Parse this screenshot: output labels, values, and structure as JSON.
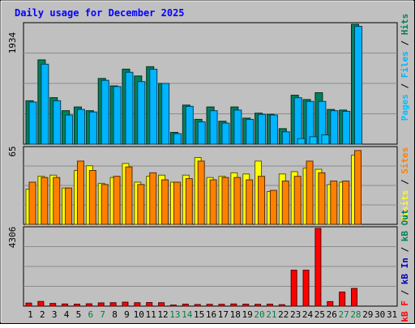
{
  "title": "Daily usage for December 2025",
  "colors": {
    "background": "#c0c0c0",
    "plot_bg": "#c0c0c0",
    "title": "#0000ff",
    "grid": "#8c8c8c",
    "hits": "#00805c",
    "files": "#00b4ff",
    "pages": "#00c0ff",
    "visits": "#ffff00",
    "sites": "#ff8000",
    "kb_in": "#0000c0",
    "kb_out": "#00805c",
    "kb_f": "#ff0000",
    "weekend": "#008040",
    "weekday": "#000000"
  },
  "panels": {
    "top": {
      "max_label": "1934",
      "legend": [
        "Pages",
        "/",
        "Files",
        "/",
        "Hits"
      ]
    },
    "middle": {
      "max_label": "65",
      "legend": [
        "Visits",
        "/",
        "Sites"
      ]
    },
    "bottom": {
      "max_label": "4306",
      "legend": [
        "kB F",
        "/",
        "kB In",
        "/",
        "kB Out"
      ]
    }
  },
  "chart_data": [
    {
      "type": "bar",
      "panel": "top",
      "ylim": [
        0,
        1934
      ],
      "ylabel_max": "1934",
      "x": [
        1,
        2,
        3,
        4,
        5,
        6,
        7,
        8,
        9,
        10,
        11,
        12,
        13,
        14,
        15,
        16,
        17,
        18,
        19,
        20,
        21,
        22,
        23,
        24,
        25,
        26,
        27,
        28,
        29,
        30,
        31
      ],
      "series": [
        {
          "name": "Hits",
          "values": [
            700,
            1360,
            750,
            540,
            600,
            540,
            1060,
            940,
            1210,
            1100,
            1250,
            980,
            190,
            630,
            400,
            600,
            370,
            600,
            420,
            500,
            480,
            250,
            790,
            720,
            830,
            560,
            550,
            1934,
            0,
            0,
            0
          ]
        },
        {
          "name": "Files",
          "values": [
            680,
            1290,
            700,
            470,
            560,
            520,
            1030,
            930,
            1160,
            1010,
            1210,
            980,
            170,
            610,
            360,
            540,
            340,
            550,
            400,
            480,
            470,
            200,
            750,
            690,
            690,
            540,
            530,
            1900,
            0,
            0,
            0
          ]
        },
        {
          "name": "Pages",
          "values": [
            0,
            0,
            0,
            0,
            0,
            0,
            0,
            0,
            0,
            0,
            0,
            0,
            0,
            0,
            0,
            0,
            0,
            0,
            0,
            0,
            0,
            0,
            90,
            120,
            150,
            0,
            0,
            0,
            0,
            0,
            0
          ]
        }
      ]
    },
    {
      "type": "bar",
      "panel": "middle",
      "ylim": [
        0,
        65
      ],
      "ylabel_max": "65",
      "x": [
        1,
        2,
        3,
        4,
        5,
        6,
        7,
        8,
        9,
        10,
        11,
        12,
        13,
        14,
        15,
        16,
        17,
        18,
        19,
        20,
        21,
        22,
        23,
        24,
        25,
        26,
        27,
        28,
        29,
        30,
        31
      ],
      "series": [
        {
          "name": "Visits",
          "values": [
            30,
            41,
            42,
            31,
            46,
            50,
            35,
            40,
            52,
            36,
            41,
            42,
            36,
            42,
            57,
            40,
            41,
            44,
            43,
            54,
            28,
            43,
            45,
            48,
            47,
            34,
            36,
            59,
            0,
            0,
            0
          ]
        },
        {
          "name": "Sites",
          "values": [
            36,
            40,
            40,
            31,
            54,
            46,
            34,
            41,
            49,
            34,
            44,
            38,
            36,
            39,
            54,
            38,
            40,
            40,
            38,
            41,
            29,
            37,
            41,
            54,
            44,
            37,
            37,
            63,
            0,
            0,
            0
          ]
        }
      ]
    },
    {
      "type": "bar",
      "panel": "bottom",
      "ylim": [
        0,
        4306
      ],
      "ylabel_max": "4306",
      "x": [
        1,
        2,
        3,
        4,
        5,
        6,
        7,
        8,
        9,
        10,
        11,
        12,
        13,
        14,
        15,
        16,
        17,
        18,
        19,
        20,
        21,
        22,
        23,
        24,
        25,
        26,
        27,
        28,
        29,
        30,
        31
      ],
      "series": [
        {
          "name": "kB F",
          "values": [
            170,
            260,
            150,
            120,
            110,
            130,
            180,
            190,
            220,
            190,
            200,
            190,
            60,
            110,
            90,
            100,
            100,
            120,
            110,
            100,
            110,
            80,
            1990,
            1990,
            4306,
            250,
            780,
            980,
            0,
            0,
            0
          ]
        },
        {
          "name": "kB In",
          "values": [
            0,
            0,
            0,
            0,
            0,
            0,
            0,
            0,
            0,
            0,
            0,
            0,
            0,
            0,
            0,
            0,
            0,
            0,
            0,
            0,
            0,
            0,
            0,
            0,
            0,
            0,
            0,
            0,
            0,
            0,
            0
          ]
        },
        {
          "name": "kB Out",
          "values": [
            0,
            0,
            0,
            0,
            0,
            0,
            0,
            0,
            0,
            0,
            0,
            0,
            0,
            0,
            0,
            0,
            0,
            0,
            0,
            0,
            0,
            0,
            0,
            0,
            0,
            0,
            0,
            0,
            0,
            0,
            0
          ]
        }
      ]
    }
  ],
  "x_labels": [
    "1",
    "2",
    "3",
    "4",
    "5",
    "6",
    "7",
    "8",
    "9",
    "10",
    "11",
    "12",
    "13",
    "14",
    "15",
    "16",
    "17",
    "18",
    "19",
    "20",
    "21",
    "22",
    "23",
    "24",
    "25",
    "26",
    "27",
    "28",
    "29",
    "30",
    "31"
  ],
  "weekend_days": [
    6,
    7,
    13,
    14,
    20,
    21,
    27,
    28
  ]
}
